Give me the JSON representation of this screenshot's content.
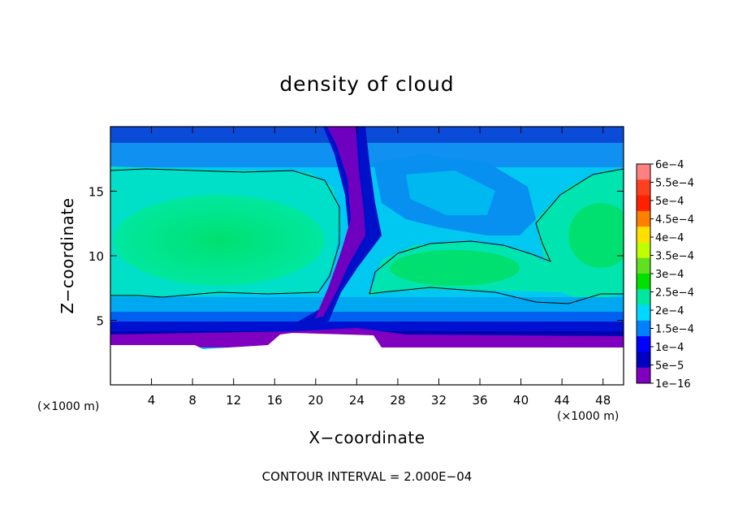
{
  "chart_data": {
    "type": "heatmap",
    "title": "density of cloud",
    "xlabel": "X−coordinate",
    "ylabel": "Z−coordinate",
    "x_unit": "(×1000 m)",
    "z_unit": "(×1000 m)",
    "x_ticks": [
      4,
      8,
      12,
      16,
      20,
      24,
      28,
      32,
      36,
      40,
      44,
      48
    ],
    "y_ticks": [
      5,
      10,
      15
    ],
    "xlim": [
      0,
      50
    ],
    "ylim": [
      0,
      20
    ],
    "footer": "CONTOUR INTERVAL = 2.000E−04",
    "contour_interval": 0.0002,
    "colorbar": {
      "labels": [
        "6e−4",
        "5.5e−4",
        "5e−4",
        "4.5e−4",
        "4e−4",
        "3.5e−4",
        "3e−4",
        "2.5e−4",
        "2e−4",
        "1.5e−4",
        "1e−4",
        "5e−5",
        "1e−16"
      ],
      "values": [
        0.0006,
        0.00055,
        0.0005,
        0.00045,
        0.0004,
        0.00035,
        0.0003,
        0.00025,
        0.0002,
        0.00015,
        0.0001,
        5e-05,
        1e-16
      ],
      "colors": [
        "#ff8080",
        "#ff4020",
        "#ff2000",
        "#ff8000",
        "#ffe000",
        "#c0ff00",
        "#60e020",
        "#00e000",
        "#00e8a0",
        "#00d8ff",
        "#0080ff",
        "#0000ff",
        "#0000c0",
        "#8000c0"
      ]
    }
  }
}
